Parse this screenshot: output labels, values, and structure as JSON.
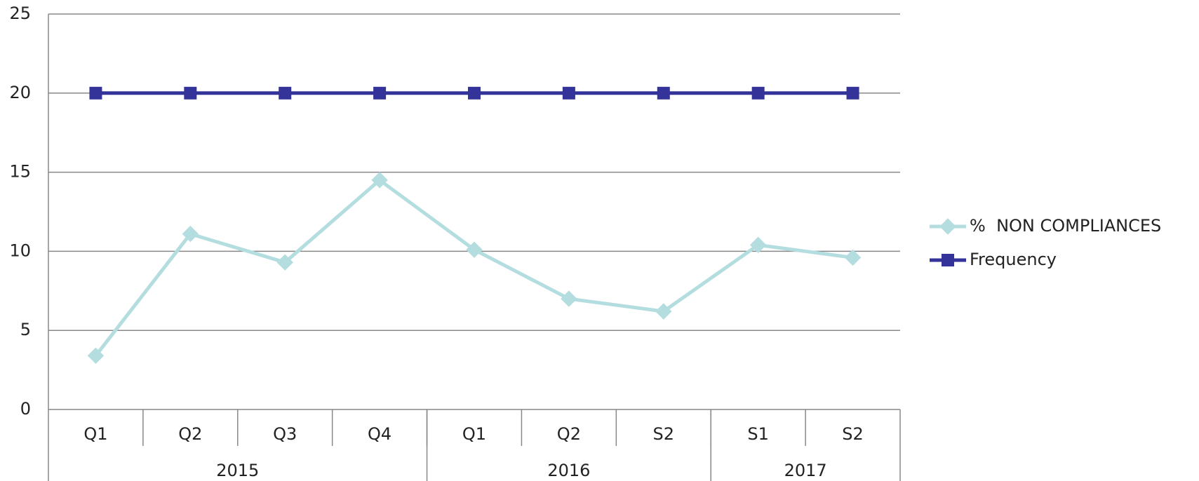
{
  "chart_data": {
    "type": "line",
    "categories": [
      "Q1",
      "Q2",
      "Q3",
      "Q4",
      "Q1",
      "Q2",
      "S2",
      "S1",
      "S2"
    ],
    "groups": [
      {
        "name": "2015",
        "span": 4
      },
      {
        "name": "2016",
        "span": 3
      },
      {
        "name": "2017",
        "span": 2
      }
    ],
    "series": [
      {
        "name": "%  NON COMPLIANCES",
        "color": "#b4dde0",
        "marker": "diamond",
        "values": [
          3.4,
          11.1,
          9.3,
          14.5,
          10.1,
          7.0,
          6.2,
          10.4,
          9.6
        ]
      },
      {
        "name": "Frequency",
        "color": "#333399",
        "marker": "square",
        "values": [
          20,
          20,
          20,
          20,
          20,
          20,
          20,
          20,
          20
        ]
      }
    ],
    "ylim": [
      0,
      25
    ],
    "yticks": [
      0,
      5,
      10,
      15,
      20,
      25
    ],
    "grid": true,
    "legend": "right"
  }
}
